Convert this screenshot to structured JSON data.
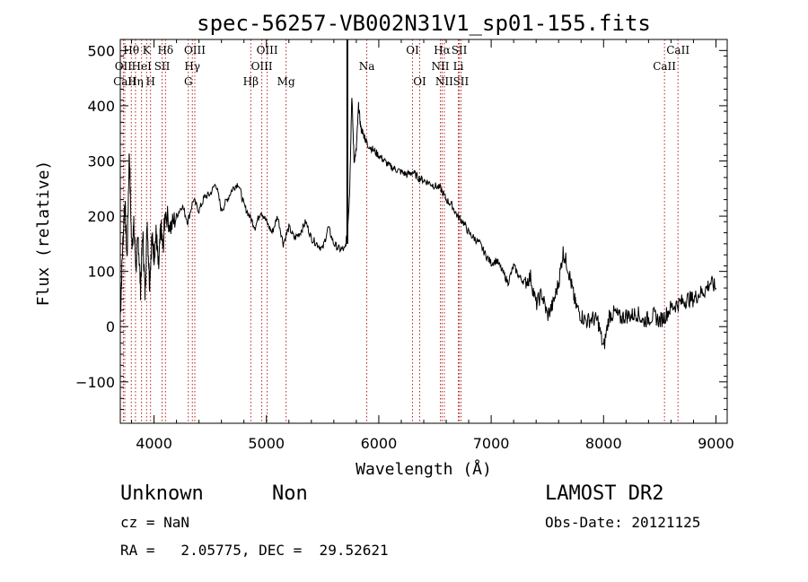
{
  "chart_data": {
    "type": "line",
    "title": "spec-56257-VB002N31V1_sp01-155.fits",
    "xlabel": "Wavelength (Å)",
    "ylabel": "Flux (relative)",
    "xlim": [
      3700,
      9100
    ],
    "ylim": [
      -175,
      520
    ],
    "x_ticks": [
      4000,
      5000,
      6000,
      7000,
      8000,
      9000
    ],
    "y_ticks": [
      -100,
      0,
      100,
      200,
      300,
      400,
      500
    ],
    "line_color": "#000000",
    "marker_color": "#b22222",
    "series": [
      {
        "x": [
          3700,
          3720,
          3740,
          3760,
          3780,
          3800,
          3820,
          3840,
          3860,
          3880,
          3900,
          3920,
          3940,
          3960,
          3980,
          4000,
          4020,
          4040,
          4060,
          4080,
          4100,
          4150,
          4200,
          4250,
          4300,
          4350,
          4400,
          4450,
          4500,
          4550,
          4600,
          4650,
          4700,
          4750,
          4800,
          4850,
          4900,
          4950,
          5000,
          5050,
          5100,
          5150,
          5200,
          5250,
          5300,
          5350,
          5400,
          5450,
          5500,
          5550,
          5600,
          5650,
          5700,
          5720,
          5740,
          5760,
          5780,
          5800,
          5820,
          5840,
          5860,
          5880,
          5900,
          5950,
          6000,
          6050,
          6100,
          6150,
          6200,
          6250,
          6300,
          6350,
          6400,
          6450,
          6500,
          6550,
          6600,
          6650,
          6700,
          6750,
          6800,
          6850,
          6900,
          6950,
          7000,
          7050,
          7100,
          7150,
          7200,
          7250,
          7300,
          7350,
          7400,
          7450,
          7500,
          7550,
          7600,
          7640,
          7680,
          7720,
          7750,
          7800,
          7850,
          7900,
          7950,
          8000,
          8050,
          8100,
          8150,
          8200,
          8250,
          8300,
          8350,
          8400,
          8450,
          8500,
          8550,
          8600,
          8650,
          8700,
          8750,
          8800,
          8850,
          8900,
          8950,
          9000
        ],
        "y": [
          20,
          140,
          230,
          120,
          320,
          150,
          180,
          110,
          160,
          70,
          170,
          60,
          190,
          80,
          160,
          130,
          170,
          100,
          180,
          140,
          210,
          180,
          200,
          220,
          190,
          230,
          210,
          235,
          240,
          260,
          210,
          230,
          250,
          260,
          220,
          200,
          180,
          210,
          190,
          170,
          200,
          150,
          180,
          160,
          170,
          190,
          160,
          150,
          140,
          180,
          150,
          140,
          140,
          170,
          240,
          420,
          300,
          320,
          400,
          360,
          350,
          340,
          330,
          320,
          310,
          300,
          290,
          285,
          280,
          275,
          280,
          270,
          265,
          260,
          255,
          250,
          230,
          220,
          200,
          190,
          170,
          160,
          150,
          130,
          115,
          120,
          100,
          80,
          110,
          90,
          80,
          90,
          40,
          60,
          20,
          40,
          80,
          135,
          110,
          70,
          40,
          20,
          10,
          15,
          10,
          -40,
          20,
          25,
          15,
          20,
          20,
          25,
          10,
          15,
          20,
          10,
          20,
          35,
          40,
          45,
          50,
          50,
          60,
          65,
          80,
          70
        ]
      }
    ],
    "lines": [
      {
        "label": "Hθ",
        "x": 3798,
        "row": 1
      },
      {
        "label": "OII",
        "x": 3727,
        "row": 2
      },
      {
        "label": "CaII",
        "x": 3740,
        "row": 3
      },
      {
        "label": "Hη",
        "x": 3835,
        "row": 3
      },
      {
        "label": "K",
        "x": 3934,
        "row": 1
      },
      {
        "label": "HeI",
        "x": 3889,
        "row": 2
      },
      {
        "label": "H",
        "x": 3969,
        "row": 3
      },
      {
        "label": "SII",
        "x": 4072,
        "row": 2
      },
      {
        "label": "Hδ",
        "x": 4102,
        "row": 1
      },
      {
        "label": "OIII",
        "x": 4363,
        "row": 1
      },
      {
        "label": "Hγ",
        "x": 4341,
        "row": 2
      },
      {
        "label": "G",
        "x": 4305,
        "row": 3
      },
      {
        "label": "Hβ",
        "x": 4861,
        "row": 3
      },
      {
        "label": "OIII",
        "x": 5007,
        "row": 1
      },
      {
        "label": "OIII",
        "x": 4959,
        "row": 2
      },
      {
        "label": "Mg",
        "x": 5175,
        "row": 3
      },
      {
        "label": "Na",
        "x": 5893,
        "row": 2
      },
      {
        "label": "OI",
        "x": 6300,
        "row": 1
      },
      {
        "label": "OI",
        "x": 6364,
        "row": 3
      },
      {
        "label": "Hα",
        "x": 6563,
        "row": 1
      },
      {
        "label": "SII",
        "x": 6716,
        "row": 1
      },
      {
        "label": "NII",
        "x": 6548,
        "row": 2
      },
      {
        "label": "Li",
        "x": 6708,
        "row": 2
      },
      {
        "label": "NII",
        "x": 6583,
        "row": 3
      },
      {
        "label": "SII",
        "x": 6731,
        "row": 3
      },
      {
        "label": "CaII",
        "x": 8662,
        "row": 1
      },
      {
        "label": "CaII",
        "x": 8542,
        "row": 2
      }
    ]
  },
  "info": {
    "object_class": "Unknown",
    "subclass": "Non",
    "survey": "LAMOST DR2",
    "cz": "cz = NaN",
    "obs_date": "Obs-Date: 20121125",
    "coords": "RA =   2.05775, DEC =  29.52621"
  }
}
